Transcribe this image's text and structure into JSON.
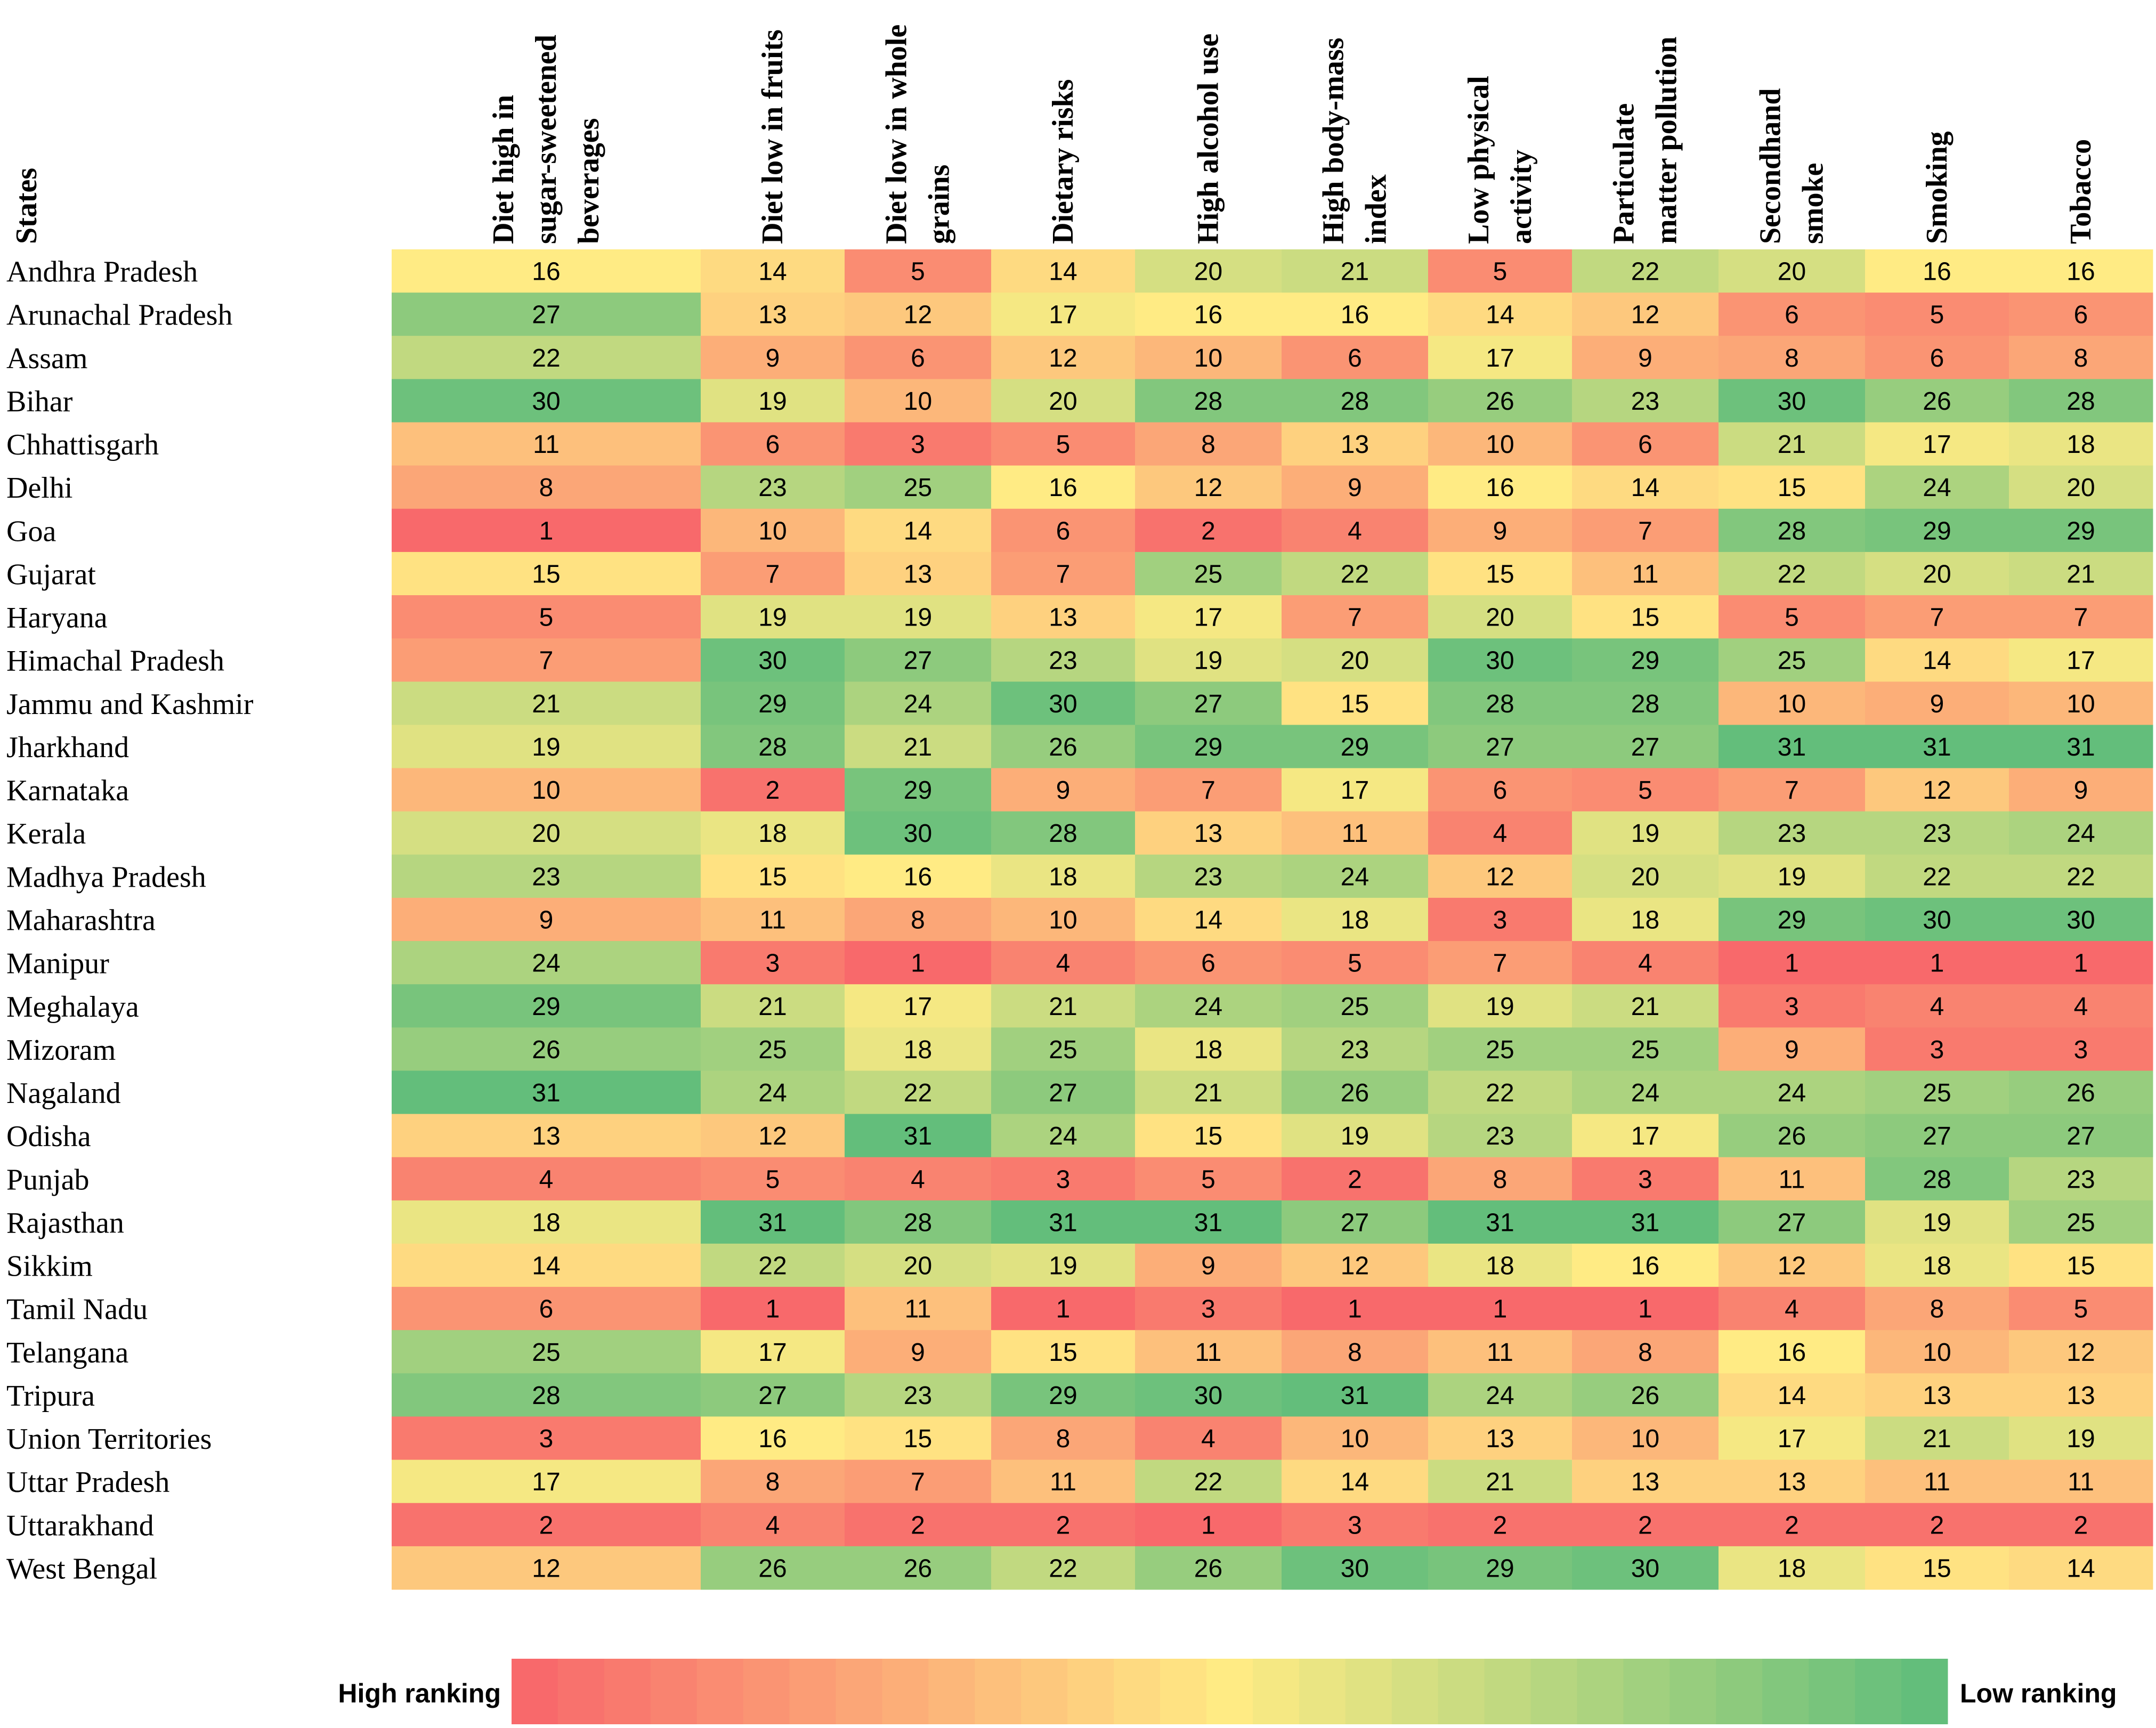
{
  "chart_data": {
    "type": "heatmap",
    "row_header": "States",
    "columns": [
      [
        "Diet high in",
        "sugar-sweetened",
        "beverages"
      ],
      [
        "Diet low in fruits"
      ],
      [
        "Diet low in whole",
        "grains"
      ],
      [
        "Dietary risks"
      ],
      [
        "High alcohol use"
      ],
      [
        "High body-mass",
        "index"
      ],
      [
        "Low physical",
        "activity"
      ],
      [
        "Particulate",
        "matter pollution"
      ],
      [
        "Secondhand",
        "smoke"
      ],
      [
        "Smoking"
      ],
      [
        "Tobacco"
      ]
    ],
    "rows": [
      "Andhra Pradesh",
      "Arunachal Pradesh",
      "Assam",
      "Bihar",
      "Chhattisgarh",
      "Delhi",
      "Goa",
      "Gujarat",
      "Haryana",
      "Himachal Pradesh",
      "Jammu and Kashmir",
      "Jharkhand",
      "Karnataka",
      "Kerala",
      "Madhya Pradesh",
      "Maharashtra",
      "Manipur",
      "Meghalaya",
      "Mizoram",
      "Nagaland",
      "Odisha",
      "Punjab",
      "Rajasthan",
      "Sikkim",
      "Tamil Nadu",
      "Telangana",
      "Tripura",
      "Union Territories",
      "Uttar Pradesh",
      "Uttarakhand",
      "West Bengal"
    ],
    "values": [
      [
        16,
        14,
        5,
        14,
        20,
        21,
        5,
        22,
        20,
        16,
        16
      ],
      [
        27,
        13,
        12,
        17,
        16,
        16,
        14,
        12,
        6,
        5,
        6
      ],
      [
        22,
        9,
        6,
        12,
        10,
        6,
        17,
        9,
        8,
        6,
        8
      ],
      [
        30,
        19,
        10,
        20,
        28,
        28,
        26,
        23,
        30,
        26,
        28
      ],
      [
        11,
        6,
        3,
        5,
        8,
        13,
        10,
        6,
        21,
        17,
        18
      ],
      [
        8,
        23,
        25,
        16,
        12,
        9,
        16,
        14,
        15,
        24,
        20
      ],
      [
        1,
        10,
        14,
        6,
        2,
        4,
        9,
        7,
        28,
        29,
        29
      ],
      [
        15,
        7,
        13,
        7,
        25,
        22,
        15,
        11,
        22,
        20,
        21
      ],
      [
        5,
        19,
        19,
        13,
        17,
        7,
        20,
        15,
        5,
        7,
        7
      ],
      [
        7,
        30,
        27,
        23,
        19,
        20,
        30,
        29,
        25,
        14,
        17
      ],
      [
        21,
        29,
        24,
        30,
        27,
        15,
        28,
        28,
        10,
        9,
        10
      ],
      [
        19,
        28,
        21,
        26,
        29,
        29,
        27,
        27,
        31,
        31,
        31
      ],
      [
        10,
        2,
        29,
        9,
        7,
        17,
        6,
        5,
        7,
        12,
        9
      ],
      [
        20,
        18,
        30,
        28,
        13,
        11,
        4,
        19,
        23,
        23,
        24
      ],
      [
        23,
        15,
        16,
        18,
        23,
        24,
        12,
        20,
        19,
        22,
        22
      ],
      [
        9,
        11,
        8,
        10,
        14,
        18,
        3,
        18,
        29,
        30,
        30
      ],
      [
        24,
        3,
        1,
        4,
        6,
        5,
        7,
        4,
        1,
        1,
        1
      ],
      [
        29,
        21,
        17,
        21,
        24,
        25,
        19,
        21,
        3,
        4,
        4
      ],
      [
        26,
        25,
        18,
        25,
        18,
        23,
        25,
        25,
        9,
        3,
        3
      ],
      [
        31,
        24,
        22,
        27,
        21,
        26,
        22,
        24,
        24,
        25,
        26
      ],
      [
        13,
        12,
        31,
        24,
        15,
        19,
        23,
        17,
        26,
        27,
        27
      ],
      [
        4,
        5,
        4,
        3,
        5,
        2,
        8,
        3,
        11,
        28,
        23
      ],
      [
        18,
        31,
        28,
        31,
        31,
        27,
        31,
        31,
        27,
        19,
        25
      ],
      [
        14,
        22,
        20,
        19,
        9,
        12,
        18,
        16,
        12,
        18,
        15
      ],
      [
        6,
        1,
        11,
        1,
        3,
        1,
        1,
        1,
        4,
        8,
        5
      ],
      [
        25,
        17,
        9,
        15,
        11,
        8,
        11,
        8,
        16,
        10,
        12
      ],
      [
        28,
        27,
        23,
        29,
        30,
        31,
        24,
        26,
        14,
        13,
        13
      ],
      [
        3,
        16,
        15,
        8,
        4,
        10,
        13,
        10,
        17,
        21,
        19
      ],
      [
        17,
        8,
        7,
        11,
        22,
        14,
        21,
        13,
        13,
        11,
        11
      ],
      [
        2,
        4,
        2,
        2,
        1,
        3,
        2,
        2,
        2,
        2,
        2
      ],
      [
        12,
        26,
        26,
        22,
        26,
        30,
        29,
        30,
        18,
        15,
        14
      ]
    ],
    "value_range": [
      1,
      31
    ],
    "color_scale": [
      "#f8696b",
      "#ffeb84",
      "#63be7b"
    ],
    "legend": {
      "low_end_label": "High ranking",
      "high_end_label": "Low ranking",
      "placement": "bottom"
    }
  }
}
